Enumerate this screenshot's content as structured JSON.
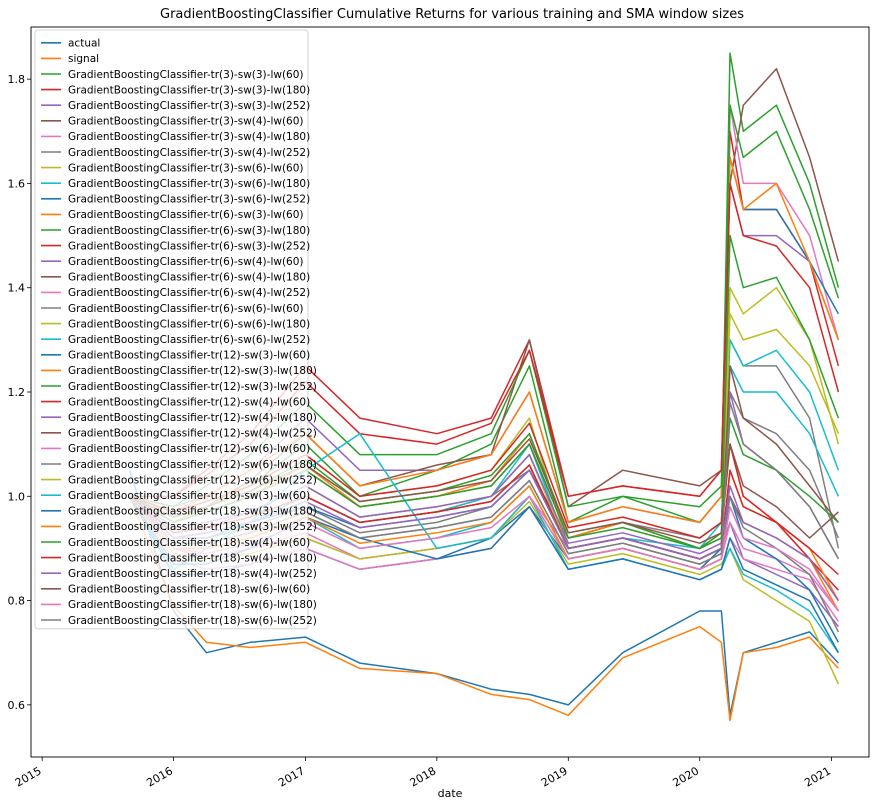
{
  "chart_data": {
    "type": "line",
    "title": "GradientBoostingClassifier Cumulative Returns for various training and SMA window sizes",
    "xlabel": "date",
    "ylabel": "",
    "xlim": [
      "2014-12-01",
      "2021-04-15"
    ],
    "ylim": [
      0.5,
      1.9
    ],
    "xticks": [
      "2015",
      "2016",
      "2017",
      "2018",
      "2019",
      "2020",
      "2021"
    ],
    "yticks": [
      0.6,
      0.8,
      1.0,
      1.2,
      1.4,
      1.6,
      1.8
    ],
    "grid": false,
    "legend_position": "upper-left",
    "x": [
      "2015-09-01",
      "2016-01-01",
      "2016-04-01",
      "2016-08-01",
      "2017-01-01",
      "2017-06-01",
      "2018-01-01",
      "2018-06-01",
      "2018-09-15",
      "2019-01-01",
      "2019-06-01",
      "2020-01-01",
      "2020-03-01",
      "2020-03-25",
      "2020-05-01",
      "2020-08-01",
      "2020-11-01",
      "2021-01-20"
    ],
    "series": [
      {
        "name": "actual",
        "color": "#1f77b4",
        "values": [
          1.05,
          0.78,
          0.7,
          0.72,
          0.73,
          0.68,
          0.66,
          0.63,
          0.62,
          0.6,
          0.7,
          0.78,
          0.78,
          0.58,
          0.7,
          0.72,
          0.74,
          0.68
        ]
      },
      {
        "name": "signal",
        "color": "#ff7f0e",
        "values": [
          1.0,
          0.79,
          0.72,
          0.71,
          0.72,
          0.67,
          0.66,
          0.62,
          0.61,
          0.58,
          0.69,
          0.75,
          0.72,
          0.57,
          0.7,
          0.71,
          0.73,
          0.67
        ]
      },
      {
        "name": "GradientBoostingClassifier-tr(3)-sw(3)-lw(60)",
        "color": "#2ca02c",
        "values": [
          1.0,
          0.95,
          0.98,
          1.02,
          1.1,
          1.0,
          1.05,
          1.1,
          1.25,
          0.95,
          1.0,
          0.95,
          1.0,
          1.85,
          1.7,
          1.75,
          1.6,
          1.4
        ]
      },
      {
        "name": "GradientBoostingClassifier-tr(3)-sw(3)-lw(180)",
        "color": "#d62728",
        "values": [
          1.0,
          1.0,
          1.05,
          1.12,
          1.25,
          1.15,
          1.12,
          1.15,
          1.3,
          1.0,
          1.02,
          1.0,
          1.05,
          1.7,
          1.55,
          1.55,
          1.45,
          1.25
        ]
      },
      {
        "name": "GradientBoostingClassifier-tr(3)-sw(3)-lw(252)",
        "color": "#9467bd",
        "values": [
          1.0,
          0.98,
          1.0,
          1.05,
          1.15,
          1.05,
          1.05,
          1.08,
          1.2,
          0.95,
          0.98,
          0.95,
          1.0,
          1.6,
          1.5,
          1.5,
          1.45,
          1.3
        ]
      },
      {
        "name": "GradientBoostingClassifier-tr(3)-sw(4)-lw(60)",
        "color": "#8c564b",
        "values": [
          1.0,
          0.96,
          0.98,
          1.03,
          1.12,
          1.02,
          1.06,
          1.08,
          1.3,
          0.98,
          1.05,
          1.02,
          1.05,
          1.6,
          1.75,
          1.82,
          1.65,
          1.45
        ]
      },
      {
        "name": "GradientBoostingClassifier-tr(3)-sw(4)-lw(180)",
        "color": "#e377c2",
        "values": [
          1.0,
          0.9,
          0.88,
          0.9,
          0.92,
          0.88,
          0.9,
          0.92,
          1.0,
          0.9,
          0.92,
          0.88,
          0.9,
          1.75,
          1.6,
          1.6,
          1.5,
          1.3
        ]
      },
      {
        "name": "GradientBoostingClassifier-tr(3)-sw(4)-lw(252)",
        "color": "#7f7f7f",
        "values": [
          1.0,
          0.92,
          0.93,
          0.95,
          1.0,
          0.95,
          0.97,
          1.0,
          1.05,
          0.92,
          0.95,
          0.92,
          0.95,
          1.3,
          1.25,
          1.25,
          1.15,
          0.9
        ]
      },
      {
        "name": "GradientBoostingClassifier-tr(3)-sw(6)-lw(60)",
        "color": "#bcbd22",
        "values": [
          1.0,
          0.95,
          0.98,
          1.02,
          1.08,
          1.0,
          1.02,
          1.05,
          1.15,
          0.9,
          0.92,
          0.88,
          0.9,
          1.4,
          1.35,
          1.4,
          1.3,
          1.1
        ]
      },
      {
        "name": "GradientBoostingClassifier-tr(3)-sw(6)-lw(180)",
        "color": "#17becf",
        "values": [
          1.0,
          0.92,
          0.92,
          0.95,
          1.0,
          0.95,
          0.97,
          1.0,
          1.1,
          0.9,
          0.92,
          0.9,
          0.95,
          1.3,
          1.25,
          1.28,
          1.2,
          1.05
        ]
      },
      {
        "name": "GradientBoostingClassifier-tr(3)-sw(6)-lw(252)",
        "color": "#1f77b4",
        "values": [
          1.0,
          0.85,
          0.85,
          0.87,
          0.9,
          0.86,
          0.88,
          0.92,
          0.98,
          0.88,
          0.9,
          0.86,
          0.9,
          1.65,
          1.55,
          1.55,
          1.45,
          1.35
        ]
      },
      {
        "name": "GradientBoostingClassifier-tr(6)-sw(3)-lw(60)",
        "color": "#ff7f0e",
        "values": [
          1.0,
          0.97,
          1.0,
          1.05,
          1.12,
          1.02,
          1.05,
          1.08,
          1.2,
          0.95,
          0.98,
          0.95,
          1.0,
          1.65,
          1.55,
          1.6,
          1.45,
          1.3
        ]
      },
      {
        "name": "GradientBoostingClassifier-tr(6)-sw(3)-lw(180)",
        "color": "#2ca02c",
        "values": [
          1.0,
          0.98,
          1.02,
          1.08,
          1.18,
          1.08,
          1.08,
          1.12,
          1.28,
          0.98,
          1.0,
          0.98,
          1.02,
          1.75,
          1.65,
          1.7,
          1.55,
          1.38
        ]
      },
      {
        "name": "GradientBoostingClassifier-tr(6)-sw(3)-lw(252)",
        "color": "#d62728",
        "values": [
          1.0,
          1.0,
          1.04,
          1.1,
          1.22,
          1.12,
          1.1,
          1.14,
          1.28,
          1.0,
          1.02,
          1.0,
          1.05,
          1.6,
          1.5,
          1.48,
          1.4,
          1.2
        ]
      },
      {
        "name": "GradientBoostingClassifier-tr(6)-sw(4)-lw(60)",
        "color": "#9467bd",
        "values": [
          1.0,
          0.93,
          0.94,
          0.97,
          1.02,
          0.96,
          0.98,
          1.0,
          1.08,
          0.9,
          0.92,
          0.88,
          0.9,
          0.95,
          0.88,
          0.85,
          0.82,
          0.75
        ]
      },
      {
        "name": "GradientBoostingClassifier-tr(6)-sw(4)-lw(180)",
        "color": "#8c564b",
        "values": [
          1.0,
          0.95,
          0.97,
          1.0,
          1.05,
          0.98,
          1.0,
          1.02,
          1.1,
          0.92,
          0.95,
          0.9,
          0.92,
          1.0,
          0.95,
          0.92,
          0.88,
          0.8
        ]
      },
      {
        "name": "GradientBoostingClassifier-tr(6)-sw(4)-lw(252)",
        "color": "#e377c2",
        "values": [
          1.0,
          0.9,
          0.88,
          0.9,
          0.93,
          0.88,
          0.9,
          0.92,
          1.0,
          0.88,
          0.9,
          0.86,
          0.88,
          0.95,
          0.9,
          0.88,
          0.85,
          0.78
        ]
      },
      {
        "name": "GradientBoostingClassifier-tr(6)-sw(6)-lw(60)",
        "color": "#7f7f7f",
        "values": [
          1.0,
          0.92,
          0.92,
          0.94,
          0.98,
          0.93,
          0.95,
          0.98,
          1.05,
          0.9,
          0.92,
          0.88,
          0.9,
          1.2,
          1.15,
          1.12,
          1.05,
          0.92
        ]
      },
      {
        "name": "GradientBoostingClassifier-tr(6)-sw(6)-lw(180)",
        "color": "#bcbd22",
        "values": [
          1.0,
          0.94,
          0.95,
          0.97,
          1.02,
          0.96,
          0.98,
          1.0,
          1.08,
          0.9,
          0.92,
          0.88,
          0.9,
          1.35,
          1.3,
          1.32,
          1.25,
          1.12
        ]
      },
      {
        "name": "GradientBoostingClassifier-tr(6)-sw(6)-lw(252)",
        "color": "#17becf",
        "values": [
          1.0,
          0.9,
          0.9,
          0.92,
          0.96,
          0.9,
          0.92,
          0.95,
          1.02,
          0.88,
          0.9,
          0.86,
          0.88,
          1.25,
          1.2,
          1.2,
          1.12,
          1.0
        ]
      },
      {
        "name": "GradientBoostingClassifier-tr(12)-sw(3)-lw(60)",
        "color": "#1f77b4",
        "values": [
          1.0,
          0.92,
          0.93,
          0.95,
          0.98,
          0.94,
          0.96,
          0.98,
          1.05,
          0.9,
          0.92,
          0.88,
          0.9,
          1.0,
          0.92,
          0.88,
          0.82,
          0.72
        ]
      },
      {
        "name": "GradientBoostingClassifier-tr(12)-sw(3)-lw(180)",
        "color": "#ff7f0e",
        "values": [
          1.0,
          0.95,
          0.97,
          1.0,
          1.06,
          0.98,
          1.0,
          1.03,
          1.12,
          0.92,
          0.95,
          0.9,
          0.93,
          1.1,
          1.0,
          0.95,
          0.88,
          0.78
        ]
      },
      {
        "name": "GradientBoostingClassifier-tr(12)-sw(3)-lw(252)",
        "color": "#2ca02c",
        "values": [
          1.0,
          0.96,
          0.98,
          1.01,
          1.07,
          0.99,
          1.01,
          1.04,
          1.12,
          0.93,
          0.95,
          0.9,
          0.93,
          1.5,
          1.4,
          1.42,
          1.3,
          1.15
        ]
      },
      {
        "name": "GradientBoostingClassifier-tr(12)-sw(4)-lw(60)",
        "color": "#d62728",
        "values": [
          1.0,
          0.97,
          0.99,
          1.02,
          1.08,
          1.0,
          1.02,
          1.05,
          1.14,
          0.94,
          0.96,
          0.92,
          0.95,
          1.1,
          1.0,
          0.95,
          0.88,
          0.82
        ]
      },
      {
        "name": "GradientBoostingClassifier-tr(12)-sw(4)-lw(180)",
        "color": "#9467bd",
        "values": [
          1.0,
          0.94,
          0.95,
          0.97,
          1.02,
          0.96,
          0.98,
          1.0,
          1.08,
          0.91,
          0.93,
          0.89,
          0.91,
          1.2,
          1.1,
          1.05,
          0.98,
          0.88
        ]
      },
      {
        "name": "GradientBoostingClassifier-tr(12)-sw(4)-lw(252)",
        "color": "#8c564b",
        "values": [
          1.0,
          0.93,
          0.94,
          0.96,
          1.0,
          0.95,
          0.97,
          0.99,
          1.06,
          0.9,
          0.92,
          0.88,
          0.9,
          1.25,
          1.15,
          1.1,
          1.02,
          0.95
        ]
      },
      {
        "name": "GradientBoostingClassifier-tr(12)-sw(6)-lw(60)",
        "color": "#e377c2",
        "values": [
          1.0,
          0.88,
          0.86,
          0.87,
          0.9,
          0.86,
          0.88,
          0.9,
          0.98,
          0.86,
          0.88,
          0.84,
          0.86,
          0.92,
          0.88,
          0.86,
          0.84,
          0.76
        ]
      },
      {
        "name": "GradientBoostingClassifier-tr(12)-sw(6)-lw(180)",
        "color": "#7f7f7f",
        "values": [
          1.0,
          0.91,
          0.91,
          0.93,
          0.97,
          0.92,
          0.94,
          0.96,
          1.03,
          0.89,
          0.91,
          0.87,
          0.89,
          1.0,
          0.94,
          0.9,
          0.85,
          0.74
        ]
      },
      {
        "name": "GradientBoostingClassifier-tr(12)-sw(6)-lw(252)",
        "color": "#bcbd22",
        "values": [
          1.0,
          0.89,
          0.88,
          0.89,
          0.92,
          0.88,
          0.9,
          0.92,
          0.99,
          0.87,
          0.89,
          0.85,
          0.87,
          0.9,
          0.84,
          0.8,
          0.76,
          0.64
        ]
      },
      {
        "name": "GradientBoostingClassifier-tr(18)-sw(3)-lw(60)",
        "color": "#17becf",
        "values": [
          1.0,
          0.86,
          0.9,
          0.95,
          1.05,
          1.12,
          0.9,
          0.92,
          1.0,
          0.86,
          0.88,
          0.84,
          0.86,
          0.9,
          0.85,
          0.82,
          0.78,
          0.7
        ]
      },
      {
        "name": "GradientBoostingClassifier-tr(18)-sw(3)-lw(180)",
        "color": "#1f77b4",
        "values": [
          1.0,
          0.87,
          0.87,
          0.9,
          0.96,
          0.92,
          0.88,
          0.9,
          0.98,
          0.86,
          0.88,
          0.84,
          0.86,
          0.92,
          0.86,
          0.83,
          0.8,
          0.7
        ]
      },
      {
        "name": "GradientBoostingClassifier-tr(18)-sw(3)-lw(252)",
        "color": "#ff7f0e",
        "values": [
          1.0,
          0.9,
          0.9,
          0.92,
          0.96,
          0.91,
          0.93,
          0.95,
          1.02,
          0.88,
          0.9,
          0.86,
          0.88,
          1.05,
          0.98,
          0.95,
          0.9,
          0.8
        ]
      },
      {
        "name": "GradientBoostingClassifier-tr(18)-sw(4)-lw(60)",
        "color": "#2ca02c",
        "values": [
          1.0,
          0.95,
          0.97,
          1.0,
          1.05,
          0.98,
          1.0,
          1.02,
          1.1,
          0.92,
          0.94,
          0.9,
          0.92,
          1.15,
          1.08,
          1.05,
          1.0,
          0.95
        ]
      },
      {
        "name": "GradientBoostingClassifier-tr(18)-sw(4)-lw(180)",
        "color": "#d62728",
        "values": [
          1.0,
          0.93,
          0.94,
          0.96,
          1.0,
          0.95,
          0.97,
          0.99,
          1.06,
          0.9,
          0.92,
          0.88,
          0.9,
          1.05,
          0.98,
          0.95,
          0.9,
          0.85
        ]
      },
      {
        "name": "GradientBoostingClassifier-tr(18)-sw(4)-lw(252)",
        "color": "#9467bd",
        "values": [
          1.0,
          0.92,
          0.93,
          0.95,
          0.99,
          0.94,
          0.96,
          0.98,
          1.05,
          0.9,
          0.92,
          0.88,
          0.9,
          1.02,
          0.95,
          0.92,
          0.88,
          0.8
        ]
      },
      {
        "name": "GradientBoostingClassifier-tr(18)-sw(6)-lw(60)",
        "color": "#8c564b",
        "values": [
          1.0,
          0.96,
          0.98,
          1.01,
          1.06,
          0.99,
          1.01,
          1.03,
          1.11,
          0.93,
          0.95,
          0.91,
          0.93,
          1.1,
          1.02,
          0.98,
          0.92,
          0.97
        ]
      },
      {
        "name": "GradientBoostingClassifier-tr(18)-sw(6)-lw(180)",
        "color": "#e377c2",
        "values": [
          1.0,
          0.9,
          0.89,
          0.91,
          0.95,
          0.9,
          0.92,
          0.94,
          1.0,
          0.88,
          0.9,
          0.86,
          0.88,
          0.98,
          0.92,
          0.9,
          0.86,
          0.78
        ]
      },
      {
        "name": "GradientBoostingClassifier-tr(18)-sw(6)-lw(252)",
        "color": "#7f7f7f",
        "values": [
          1.0,
          0.91,
          0.91,
          0.93,
          0.97,
          0.92,
          0.94,
          0.96,
          1.03,
          0.89,
          0.91,
          0.87,
          0.89,
          1.18,
          1.1,
          1.05,
          0.98,
          0.88
        ]
      }
    ]
  }
}
